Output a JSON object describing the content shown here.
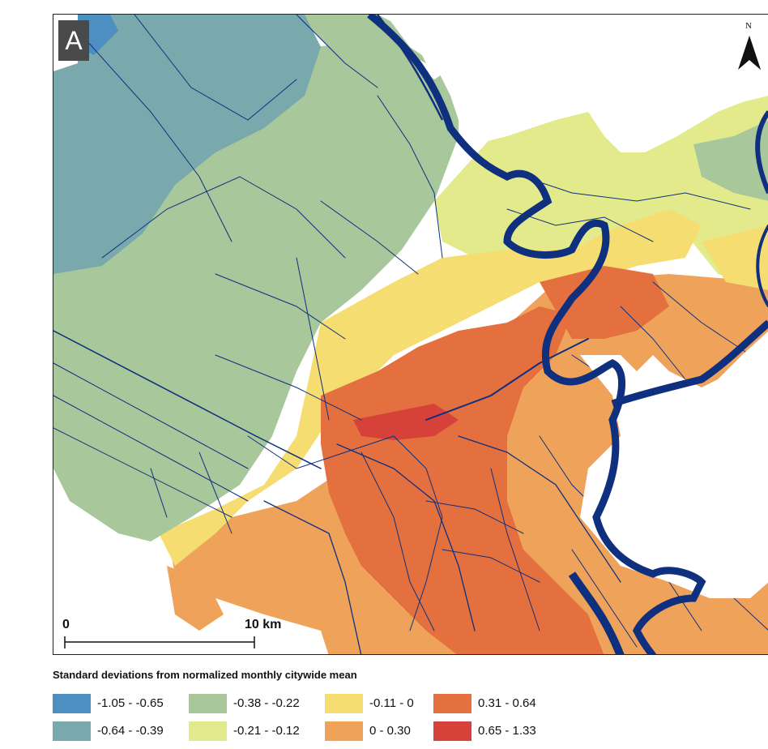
{
  "panel_label": "A",
  "north_label": "N",
  "scale": {
    "start": "0",
    "end": "10 km"
  },
  "legend": {
    "title": "Standard deviations from normalized monthly citywide mean",
    "items": [
      {
        "label": "-1.05 - -0.65",
        "color": "#4e8fc2"
      },
      {
        "label": "-0.64 - -0.39",
        "color": "#7aa9ad"
      },
      {
        "label": "-0.38 - -0.22",
        "color": "#a8c79a"
      },
      {
        "label": "-0.21 - -0.12",
        "color": "#e3ea8c"
      },
      {
        "label": "-0.11 - 0",
        "color": "#f5dd72"
      },
      {
        "label": "0 - 0.30",
        "color": "#efa35a"
      },
      {
        "label": "0.31 - 0.64",
        "color": "#e4703f"
      },
      {
        "label": "0.65 - 1.33",
        "color": "#d6423a"
      }
    ]
  },
  "colors": {
    "water": "#0f2f7f",
    "background": "#ffffff"
  }
}
